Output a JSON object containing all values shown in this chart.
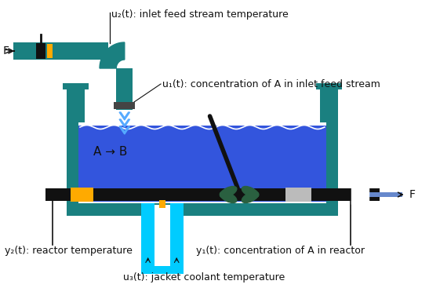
{
  "bg": "#ffffff",
  "teal": "#1a8080",
  "blue_liq": "#3355dd",
  "blue_liq2": "#4466ee",
  "cyan": "#00ccff",
  "orange": "#ffaa00",
  "black": "#111111",
  "white": "#ffffff",
  "gray": "#bbbbbb",
  "prop": "#2a6040",
  "drop": "#55aaff",
  "label_u2": "u₂(t): inlet feed stream temperature",
  "label_u1": "u₁(t): concentration of A in inlet feed stream",
  "label_u3": "u₃(t): jacket coolant temperature",
  "label_y1": "y₁(t): concentration of A in reactor",
  "label_y2": "y₂(t): reactor temperature",
  "label_F_in": "F",
  "label_F_out": "F",
  "label_rxn": "A → B",
  "fs": 9
}
